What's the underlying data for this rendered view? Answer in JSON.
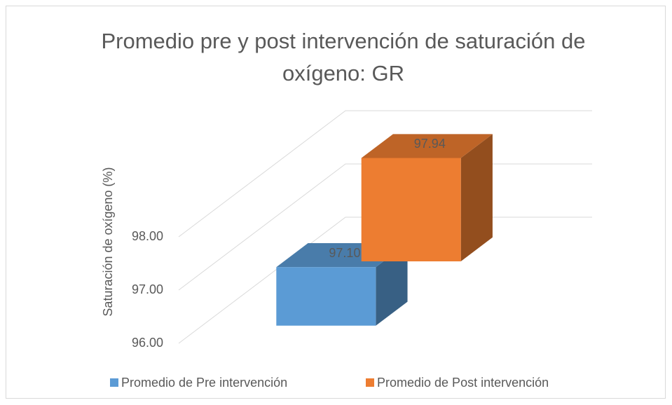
{
  "chart_data": {
    "type": "bar3d",
    "title": "Promedio pre y post intervención de saturación de oxígeno: GR",
    "y_axis_label": "Saturación de oxígeno (%)",
    "categories": [
      null
    ],
    "series": [
      {
        "name": "Promedio de Pre intervención",
        "color": "#5b9bd5",
        "values": [
          97.1
        ],
        "value_labels": [
          "97.10"
        ]
      },
      {
        "name": "Promedio de Post intervención",
        "color": "#ed7d31",
        "values": [
          97.94
        ],
        "value_labels": [
          "97.94"
        ]
      }
    ],
    "ylim": [
      96,
      98
    ],
    "yticks": [
      {
        "value": 96,
        "label": "96.00"
      },
      {
        "value": 97,
        "label": "97.00"
      },
      {
        "value": 98,
        "label": "98.00"
      }
    ],
    "grid": true,
    "legend": "bottom"
  }
}
